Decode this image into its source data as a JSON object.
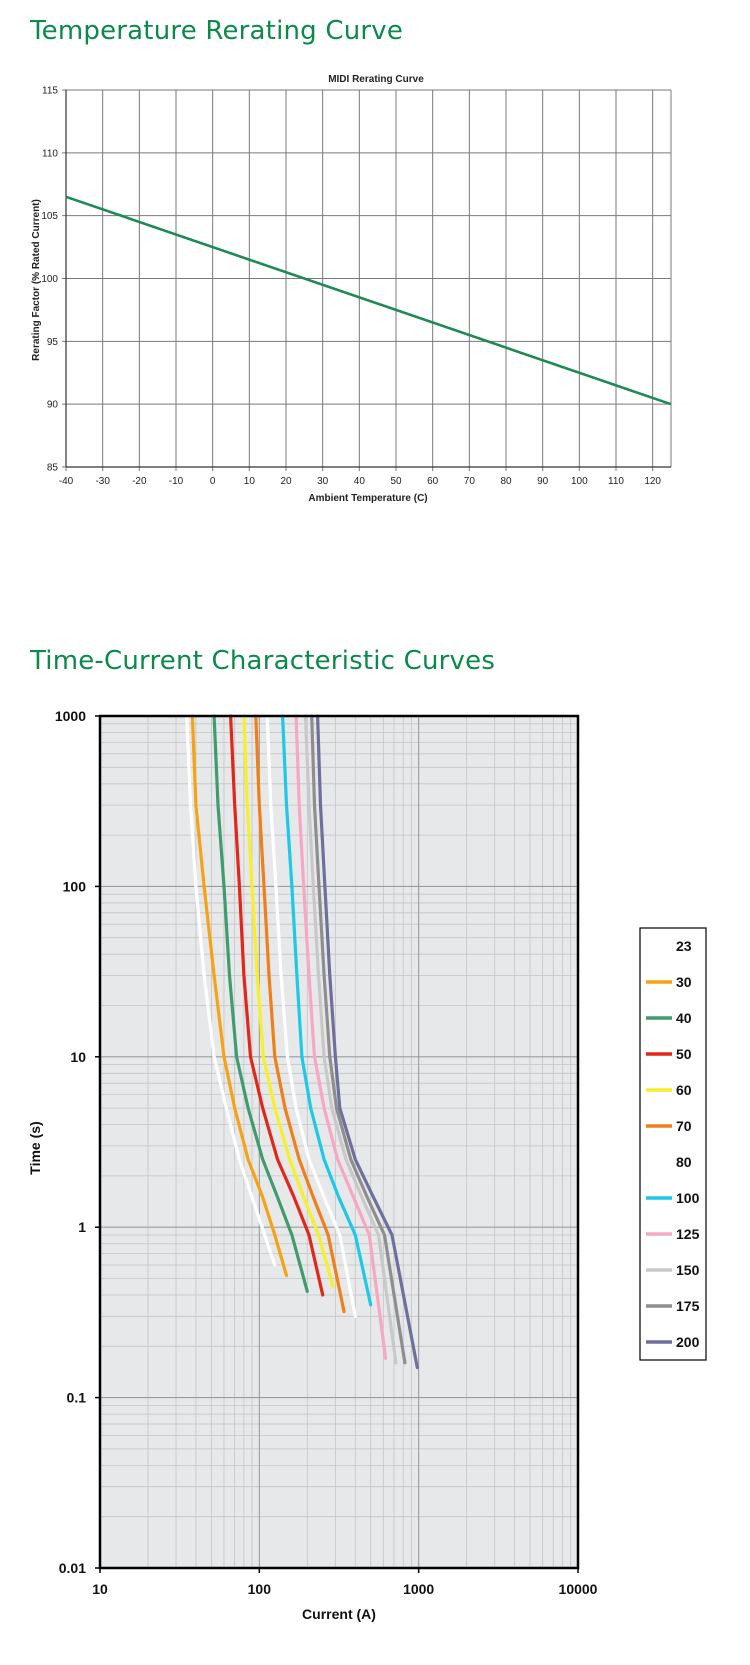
{
  "sections": {
    "temperature_title": "Temperature Rerating Curve",
    "time_current_title": "Time-Current Characteristic Curves"
  },
  "chart_data": [
    {
      "type": "line",
      "title": "MIDI Rerating Curve",
      "xlabel": "Ambient Temperature (C)",
      "ylabel": "Rerating Factor (% Rated Current)",
      "xlim": [
        -40,
        125
      ],
      "ylim": [
        85,
        115
      ],
      "xticks": [
        -40,
        -30,
        -20,
        -10,
        0,
        10,
        20,
        30,
        40,
        50,
        60,
        70,
        80,
        90,
        100,
        110,
        120
      ],
      "yticks": [
        85,
        90,
        95,
        100,
        105,
        110,
        115
      ],
      "grid": true,
      "series": [
        {
          "color": "#1f8a55",
          "x": [
            -40,
            125
          ],
          "y": [
            106.5,
            90
          ]
        }
      ]
    },
    {
      "type": "line",
      "title": "",
      "xlabel": "Current (A)",
      "ylabel": "Time (s)",
      "xscale": "log",
      "yscale": "log",
      "xlim": [
        10,
        10000
      ],
      "ylim": [
        0.01,
        1000
      ],
      "xticks": [
        "10",
        "100",
        "1000",
        "10000"
      ],
      "yticks": [
        "0.01",
        "0.1",
        "1",
        "10",
        "100",
        "1000"
      ],
      "grid": true,
      "legend": "right",
      "series": [
        {
          "name": "23",
          "color": "#ffffff",
          "x": [
            35,
            37,
            40,
            45,
            52,
            62,
            75,
            90,
            108,
            125
          ],
          "y": [
            1000,
            300,
            100,
            30,
            10,
            5,
            2.5,
            1.5,
            0.9,
            0.6
          ]
        },
        {
          "name": "30",
          "color": "#f5a315",
          "x": [
            38,
            40,
            45,
            52,
            60,
            70,
            85,
            105,
            125,
            148
          ],
          "y": [
            1000,
            300,
            100,
            30,
            10,
            5,
            2.5,
            1.5,
            0.9,
            0.52
          ]
        },
        {
          "name": "40",
          "color": "#3f9c6e",
          "x": [
            52,
            55,
            60,
            65,
            72,
            85,
            105,
            130,
            160,
            200
          ],
          "y": [
            1000,
            300,
            100,
            30,
            10,
            5,
            2.5,
            1.5,
            0.9,
            0.42
          ]
        },
        {
          "name": "50",
          "color": "#e3261a",
          "x": [
            66,
            70,
            75,
            80,
            88,
            105,
            130,
            165,
            205,
            250
          ],
          "y": [
            1000,
            300,
            100,
            30,
            10,
            5,
            2.5,
            1.5,
            0.9,
            0.4
          ]
        },
        {
          "name": "60",
          "color": "#f7ef2a",
          "x": [
            80,
            84,
            90,
            97,
            106,
            125,
            155,
            190,
            235,
            290
          ],
          "y": [
            1000,
            300,
            100,
            30,
            10,
            5,
            2.5,
            1.5,
            0.9,
            0.45
          ]
        },
        {
          "name": "70",
          "color": "#f07f18",
          "x": [
            95,
            100,
            107,
            115,
            125,
            145,
            178,
            218,
            270,
            340
          ],
          "y": [
            1000,
            300,
            100,
            30,
            10,
            5,
            2.5,
            1.5,
            0.9,
            0.32
          ]
        },
        {
          "name": "80",
          "color": "#ffffff",
          "x": [
            112,
            118,
            127,
            137,
            150,
            170,
            205,
            255,
            320,
            400
          ],
          "y": [
            1000,
            300,
            100,
            30,
            10,
            5,
            2.5,
            1.5,
            0.9,
            0.3
          ]
        },
        {
          "name": "100",
          "color": "#1dc8e8",
          "x": [
            140,
            148,
            160,
            172,
            185,
            210,
            255,
            315,
            400,
            500
          ],
          "y": [
            1000,
            300,
            100,
            30,
            10,
            5,
            2.5,
            1.5,
            0.9,
            0.35
          ]
        },
        {
          "name": "125",
          "color": "#f6a7c2",
          "x": [
            170,
            178,
            190,
            205,
            222,
            255,
            310,
            390,
            490,
            620
          ],
          "y": [
            1000,
            300,
            100,
            30,
            10,
            5,
            2.5,
            1.5,
            0.9,
            0.17
          ]
        },
        {
          "name": "150",
          "color": "#c8c8c8",
          "x": [
            195,
            205,
            218,
            235,
            255,
            285,
            350,
            440,
            560,
            720
          ],
          "y": [
            1000,
            300,
            100,
            30,
            10,
            5,
            2.5,
            1.5,
            0.9,
            0.16
          ]
        },
        {
          "name": "175",
          "color": "#8e8e8e",
          "x": [
            213,
            222,
            237,
            255,
            277,
            305,
            375,
            475,
            610,
            820
          ],
          "y": [
            1000,
            300,
            100,
            30,
            10,
            5,
            2.5,
            1.5,
            0.9,
            0.16
          ]
        },
        {
          "name": "200",
          "color": "#6e6f9a",
          "x": [
            232,
            242,
            258,
            277,
            300,
            320,
            400,
            520,
            680,
            980
          ],
          "y": [
            1000,
            300,
            100,
            30,
            10,
            5,
            2.5,
            1.5,
            0.9,
            0.15
          ]
        }
      ]
    }
  ]
}
